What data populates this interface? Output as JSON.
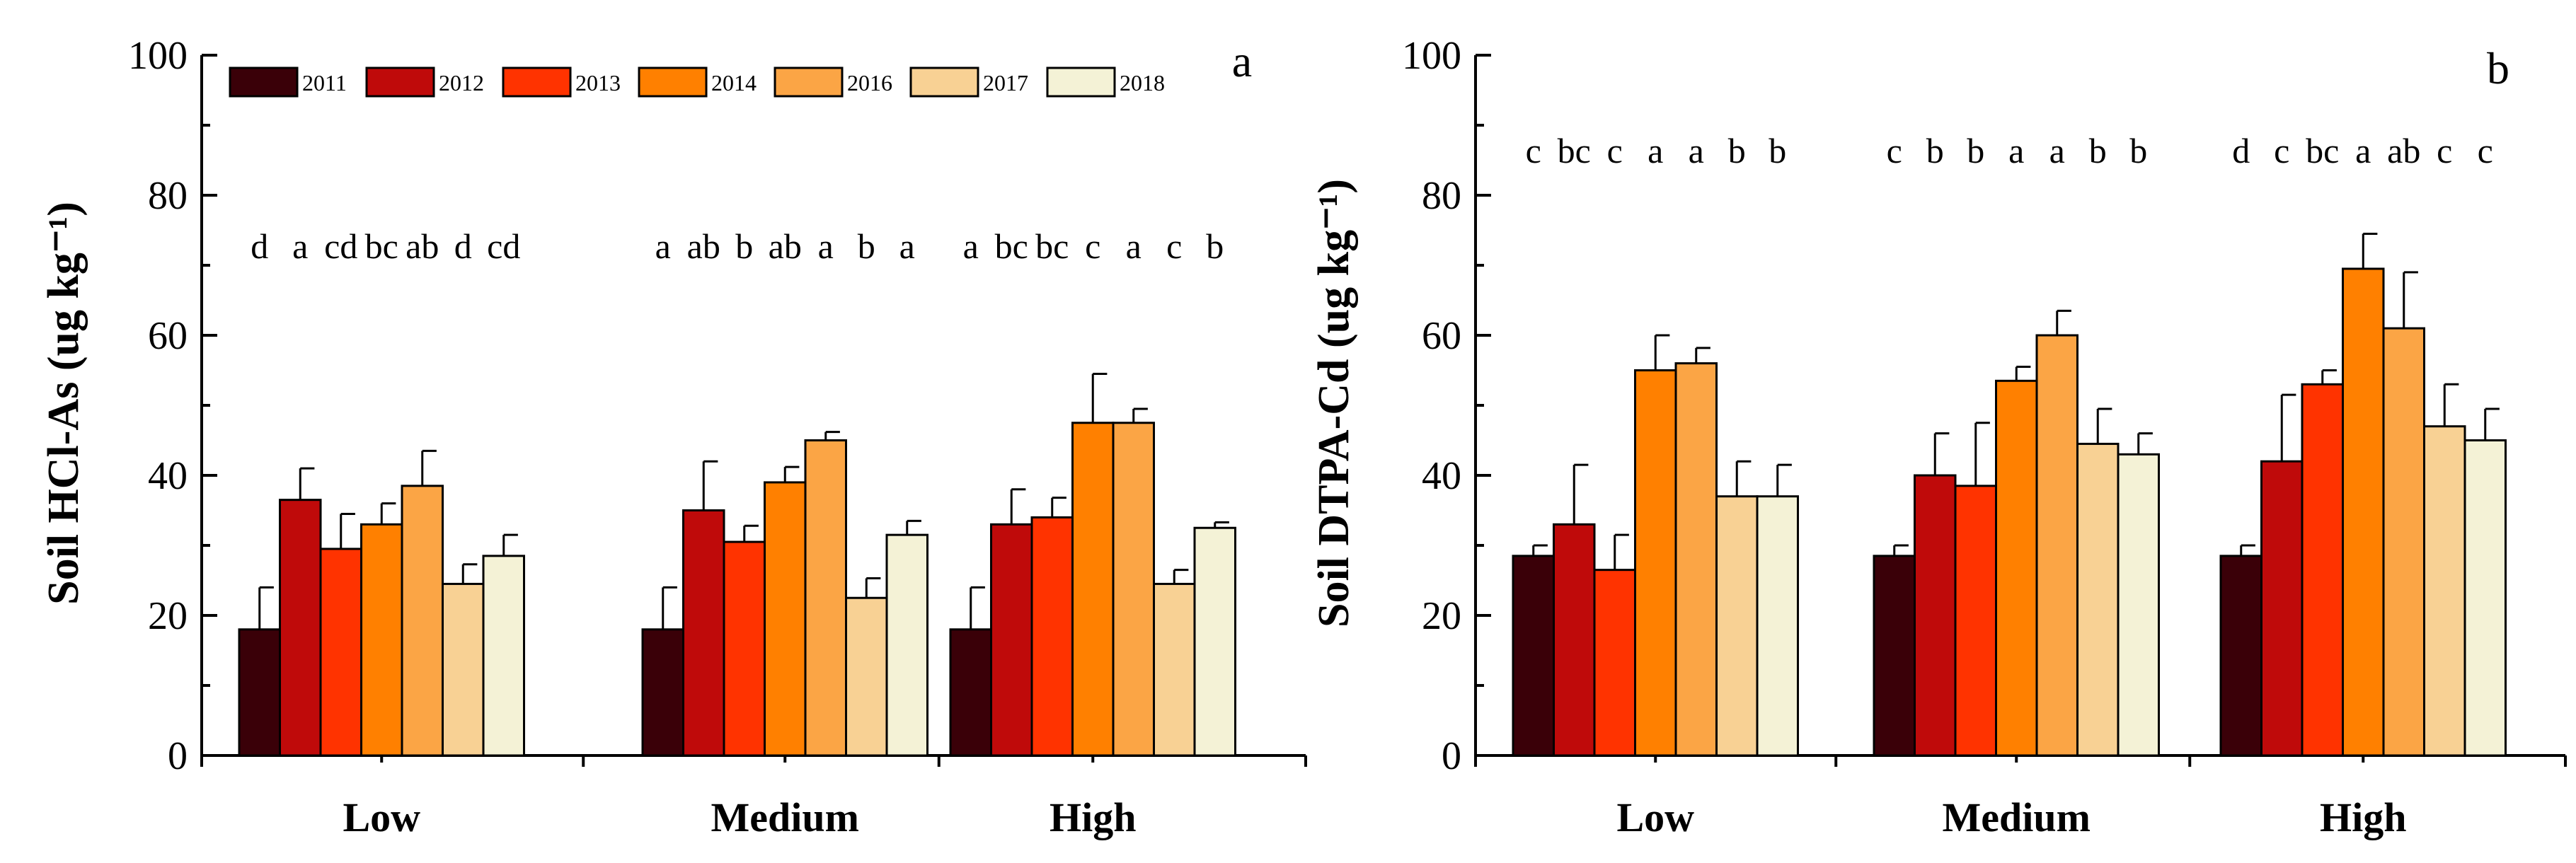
{
  "legend": {
    "entries": [
      {
        "label": "2011",
        "color": "#3a0008"
      },
      {
        "label": "2012",
        "color": "#bf0a0a"
      },
      {
        "label": "2013",
        "color": "#ff3300"
      },
      {
        "label": "2014",
        "color": "#ff8000"
      },
      {
        "label": "2016",
        "color": "#fba545"
      },
      {
        "label": "2017",
        "color": "#f8d194"
      },
      {
        "label": "2018",
        "color": "#f4f2d6"
      }
    ]
  },
  "chart_data": [
    {
      "type": "bar",
      "panel_label": "a",
      "title": "",
      "ylabel": "Soil HCl-As (ug kg⁻¹)",
      "xlabel": "",
      "ylim": [
        0,
        100
      ],
      "yticks": [
        "0",
        "20",
        "40",
        "60",
        "80",
        "100"
      ],
      "categories": [
        "Low",
        "Medium",
        "High"
      ],
      "series": [
        {
          "name": "2011",
          "values": [
            18,
            18,
            18
          ],
          "errors": [
            6,
            6,
            6
          ]
        },
        {
          "name": "2012",
          "values": [
            36.5,
            35,
            33
          ],
          "errors": [
            4.5,
            7,
            5
          ]
        },
        {
          "name": "2013",
          "values": [
            29.5,
            30.5,
            34
          ],
          "errors": [
            5,
            2.3,
            2.8
          ]
        },
        {
          "name": "2014",
          "values": [
            33,
            39,
            47.5
          ],
          "errors": [
            3,
            2.2,
            7
          ]
        },
        {
          "name": "2016",
          "values": [
            38.5,
            45,
            47.5
          ],
          "errors": [
            5,
            1.2,
            2
          ]
        },
        {
          "name": "2017",
          "values": [
            24.5,
            22.5,
            24.5
          ],
          "errors": [
            2.8,
            2.8,
            2
          ]
        },
        {
          "name": "2018",
          "values": [
            28.5,
            31.5,
            32.5
          ],
          "errors": [
            3,
            2,
            0.8
          ]
        }
      ],
      "significance": [
        [
          "d",
          "a",
          "cd",
          "bc",
          "ab",
          "d",
          "cd"
        ],
        [
          "a",
          "ab",
          "b",
          "ab",
          "a",
          "b",
          "a"
        ],
        [
          "a",
          "bc",
          "bc",
          "c",
          "a",
          "c",
          "b"
        ]
      ]
    },
    {
      "type": "bar",
      "panel_label": "b",
      "title": "",
      "ylabel": "Soil DTPA-Cd (ug kg⁻¹)",
      "xlabel": "",
      "ylim": [
        0,
        100
      ],
      "yticks": [
        "0",
        "20",
        "40",
        "60",
        "80",
        "100"
      ],
      "categories": [
        "Low",
        "Medium",
        "High"
      ],
      "series": [
        {
          "name": "2011",
          "values": [
            28.5,
            28.5,
            28.5
          ],
          "errors": [
            1.5,
            1.5,
            1.5
          ]
        },
        {
          "name": "2012",
          "values": [
            33,
            40,
            42
          ],
          "errors": [
            8.5,
            6,
            9.5
          ]
        },
        {
          "name": "2013",
          "values": [
            26.5,
            38.5,
            53
          ],
          "errors": [
            5,
            9,
            2
          ]
        },
        {
          "name": "2014",
          "values": [
            55,
            53.5,
            69.5
          ],
          "errors": [
            5,
            2,
            5
          ]
        },
        {
          "name": "2016",
          "values": [
            56,
            60,
            61
          ],
          "errors": [
            2.2,
            3.5,
            8
          ]
        },
        {
          "name": "2017",
          "values": [
            37,
            44.5,
            47
          ],
          "errors": [
            5,
            5,
            6
          ]
        },
        {
          "name": "2018",
          "values": [
            37,
            43,
            45
          ],
          "errors": [
            4.5,
            3,
            4.5
          ]
        }
      ],
      "significance": [
        [
          "c",
          "bc",
          "c",
          "a",
          "a",
          "b",
          "b"
        ],
        [
          "c",
          "b",
          "b",
          "a",
          "a",
          "b",
          "b"
        ],
        [
          "d",
          "c",
          "bc",
          "a",
          "ab",
          "c",
          "c"
        ]
      ]
    }
  ]
}
